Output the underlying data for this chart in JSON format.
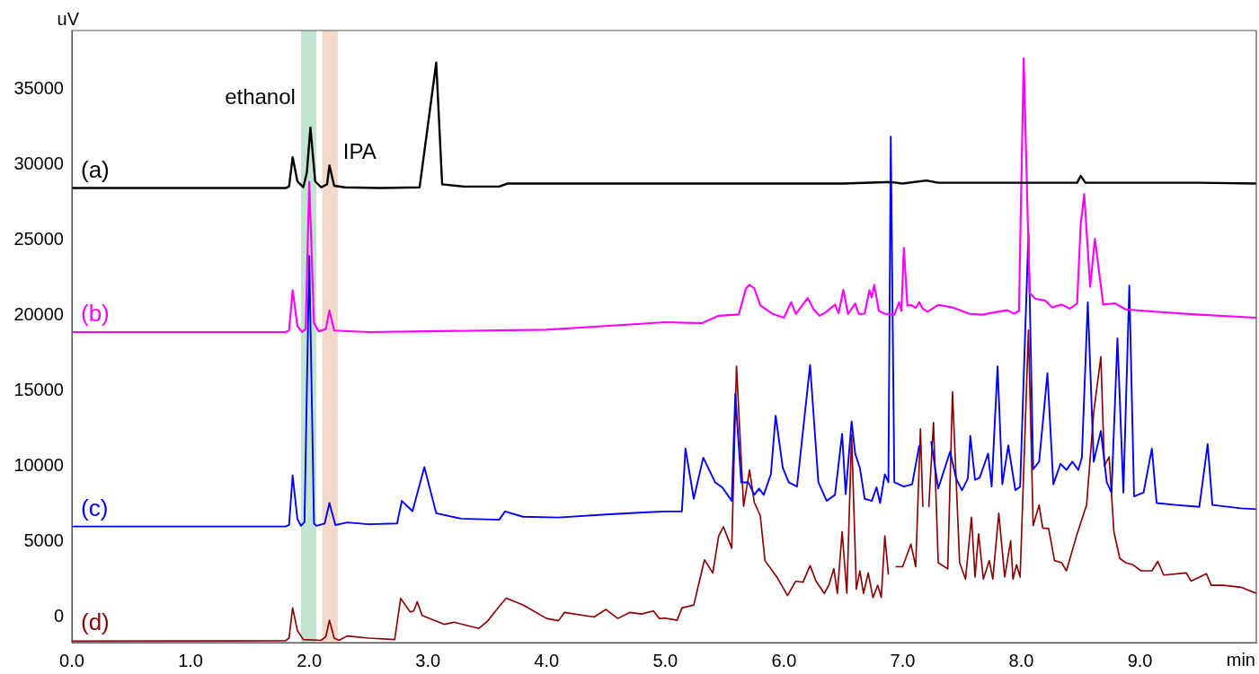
{
  "chart_data": {
    "type": "line",
    "xlabel": "min",
    "ylabel": "uV",
    "xlim": [
      0,
      9.98
    ],
    "ylim": [
      -1700,
      38900
    ],
    "xticks": [
      {
        "value": 0,
        "label": "0.0"
      },
      {
        "value": 1,
        "label": "1.0"
      },
      {
        "value": 2,
        "label": "2.0"
      },
      {
        "value": 3,
        "label": "3.0"
      },
      {
        "value": 4,
        "label": "4.0"
      },
      {
        "value": 5,
        "label": "5.0"
      },
      {
        "value": 6,
        "label": "6.0"
      },
      {
        "value": 7,
        "label": "7.0"
      },
      {
        "value": 8,
        "label": "8.0"
      },
      {
        "value": 9,
        "label": "9.0"
      }
    ],
    "yticks": [
      0,
      5000,
      10000,
      15000,
      20000,
      25000,
      30000,
      35000
    ],
    "grid": false,
    "legend": false,
    "bands": [
      {
        "axis": "x",
        "from": 1.93,
        "to": 2.06,
        "label": "ethanol",
        "color": "#c2e5d2"
      },
      {
        "axis": "x",
        "from": 2.11,
        "to": 2.24,
        "label": "IPA",
        "color": "#f2d9c9"
      }
    ],
    "series": [
      {
        "name": "(a)",
        "color": "#000000",
        "x": [
          0,
          1.5,
          1.8,
          1.83,
          1.86,
          1.9,
          1.95,
          1.98,
          2.01,
          2.05,
          2.1,
          2.15,
          2.17,
          2.21,
          2.3,
          2.6,
          2.93,
          3.07,
          3.12,
          3.3,
          3.6,
          3.67,
          4.5,
          5.5,
          6.5,
          6.9,
          7.0,
          7.2,
          7.3,
          8.0,
          8.47,
          8.5,
          8.54,
          9.5,
          9.98
        ],
        "values": [
          28450,
          28450,
          28450,
          28550,
          30500,
          28900,
          28500,
          29500,
          32460,
          28900,
          28500,
          28700,
          29950,
          28600,
          28500,
          28450,
          28500,
          36770,
          28700,
          28550,
          28550,
          28750,
          28750,
          28750,
          28750,
          28850,
          28750,
          28950,
          28800,
          28800,
          28800,
          29260,
          28800,
          28800,
          28750
        ]
      },
      {
        "name": "(b)",
        "color": "#ff00ff",
        "x": [
          0,
          1.8,
          1.83,
          1.86,
          1.9,
          1.94,
          1.97,
          2.0,
          2.04,
          2.08,
          2.14,
          2.17,
          2.21,
          2.5,
          3.0,
          4.0,
          4.5,
          5.0,
          5.31,
          5.45,
          5.62,
          5.68,
          5.71,
          5.75,
          5.8,
          5.9,
          6.0,
          6.06,
          6.1,
          6.2,
          6.25,
          6.3,
          6.35,
          6.43,
          6.46,
          6.5,
          6.54,
          6.6,
          6.63,
          6.68,
          6.72,
          6.74,
          6.76,
          6.8,
          6.85,
          6.93,
          6.97,
          6.99,
          7.01,
          7.04,
          7.07,
          7.11,
          7.14,
          7.17,
          7.21,
          7.3,
          7.42,
          7.56,
          7.67,
          7.77,
          7.88,
          7.94,
          7.98,
          8.02,
          8.07,
          8.12,
          8.2,
          8.26,
          8.34,
          8.41,
          8.47,
          8.5,
          8.53,
          8.58,
          8.62,
          8.69,
          8.79,
          8.88,
          9.15,
          9.5,
          9.98
        ],
        "values": [
          18900,
          18900,
          19000,
          21680,
          19300,
          18900,
          19100,
          28860,
          19500,
          18950,
          19100,
          20340,
          19000,
          18900,
          18950,
          19050,
          19300,
          19550,
          19490,
          19980,
          20070,
          21800,
          22030,
          21800,
          20670,
          20120,
          19850,
          20880,
          20100,
          21160,
          20400,
          19980,
          20200,
          20720,
          20150,
          21700,
          20100,
          20800,
          20100,
          20120,
          21680,
          21200,
          22030,
          20300,
          20120,
          20050,
          20880,
          20300,
          24490,
          20650,
          20700,
          20500,
          20880,
          20450,
          20250,
          20700,
          20530,
          20120,
          20050,
          20200,
          20350,
          20120,
          20300,
          37050,
          21490,
          21100,
          20990,
          20530,
          20720,
          20450,
          20800,
          26000,
          28040,
          21890,
          25090,
          20720,
          20800,
          20400,
          20240,
          20050,
          19850
        ]
      },
      {
        "name": "(c)",
        "color": "#0000ff",
        "x": [
          0,
          1.8,
          1.83,
          1.86,
          1.9,
          1.93,
          1.96,
          2.0,
          2.04,
          2.06,
          2.13,
          2.17,
          2.22,
          2.32,
          2.5,
          2.74,
          2.78,
          2.87,
          2.97,
          3.07,
          3.28,
          3.6,
          3.65,
          3.8,
          4.1,
          4.5,
          4.85,
          5.0,
          5.14,
          5.17,
          5.24,
          5.32,
          5.42,
          5.48,
          5.56,
          5.59,
          5.64,
          5.7,
          5.75,
          5.79,
          5.83,
          5.89,
          5.93,
          5.99,
          6.04,
          6.11,
          6.22,
          6.29,
          6.36,
          6.43,
          6.49,
          6.52,
          6.57,
          6.6,
          6.64,
          6.68,
          6.74,
          6.78,
          6.81,
          6.85,
          6.88,
          6.9,
          6.93,
          7.01,
          7.08,
          7.14,
          7.19,
          7.23,
          7.24,
          7.3,
          7.4,
          7.45,
          7.5,
          7.55,
          7.57,
          7.61,
          7.65,
          7.72,
          7.75,
          7.8,
          7.84,
          7.89,
          7.95,
          7.99,
          8.06,
          8.1,
          8.15,
          8.22,
          8.27,
          8.33,
          8.38,
          8.43,
          8.48,
          8.51,
          8.56,
          8.61,
          8.67,
          8.72,
          8.76,
          8.81,
          8.86,
          8.91,
          8.95,
          9.03,
          9.1,
          9.14,
          9.3,
          9.5,
          9.57,
          9.61,
          9.85,
          9.98
        ],
        "values": [
          6000,
          6000,
          6100,
          9390,
          6500,
          6050,
          6300,
          23940,
          6200,
          6050,
          6200,
          7560,
          6100,
          6270,
          6150,
          6200,
          7700,
          7020,
          9940,
          6880,
          6520,
          6450,
          7000,
          6650,
          6600,
          6800,
          6950,
          7000,
          7000,
          11170,
          7840,
          10570,
          8930,
          8600,
          7700,
          14800,
          8930,
          8930,
          8100,
          8520,
          8100,
          9480,
          13350,
          9900,
          8930,
          8650,
          16710,
          8930,
          7700,
          8100,
          12150,
          8150,
          12970,
          10840,
          9880,
          7840,
          7700,
          8600,
          7560,
          9470,
          8930,
          31860,
          8930,
          8650,
          8800,
          11380,
          null,
          null,
          11660,
          8520,
          10970,
          9200,
          8400,
          9200,
          12010,
          9100,
          9250,
          10840,
          8650,
          16630,
          8800,
          11380,
          8400,
          8650,
          25440,
          9800,
          10300,
          16160,
          8800,
          10160,
          9750,
          10300,
          9750,
          10570,
          20880,
          10300,
          12340,
          8930,
          8250,
          18480,
          8250,
          21980,
          8000,
          8250,
          11170,
          7560,
          7430,
          7300,
          11470,
          7430,
          7210,
          7150
        ]
      },
      {
        "name": "(d)",
        "color": "#8b0000",
        "x": [
          0,
          1.8,
          1.83,
          1.86,
          1.9,
          1.95,
          2.1,
          2.14,
          2.17,
          2.21,
          2.25,
          2.32,
          2.5,
          2.72,
          2.77,
          2.85,
          2.88,
          2.91,
          2.95,
          3.14,
          3.22,
          3.43,
          3.5,
          3.6,
          3.66,
          3.8,
          4.0,
          4.1,
          4.15,
          4.4,
          4.5,
          4.6,
          4.7,
          4.8,
          4.9,
          4.95,
          5.0,
          5.1,
          5.14,
          5.24,
          5.33,
          5.4,
          5.45,
          5.49,
          5.56,
          5.6,
          5.66,
          5.71,
          5.75,
          5.8,
          5.84,
          5.94,
          6.03,
          6.1,
          6.16,
          6.22,
          6.27,
          6.34,
          6.38,
          6.42,
          6.45,
          6.49,
          6.53,
          6.57,
          6.61,
          6.64,
          6.67,
          6.71,
          6.75,
          6.79,
          6.82,
          6.85,
          6.88,
          6.91,
          6.94,
          7.0,
          7.07,
          7.11,
          7.15,
          7.17,
          7.19,
          7.22,
          7.26,
          7.3,
          7.38,
          7.42,
          7.48,
          7.53,
          7.58,
          7.61,
          7.64,
          7.68,
          7.73,
          7.76,
          7.81,
          7.86,
          7.91,
          7.93,
          7.96,
          7.99,
          8.06,
          8.1,
          8.15,
          8.18,
          8.23,
          8.28,
          8.34,
          8.38,
          8.47,
          8.51,
          8.55,
          8.61,
          8.67,
          8.7,
          8.74,
          8.78,
          8.83,
          8.88,
          8.94,
          9.01,
          9.1,
          9.15,
          9.2,
          9.39,
          9.43,
          9.56,
          9.6,
          9.7,
          9.85,
          9.98
        ],
        "values": [
          -1600,
          -1580,
          -1400,
          600,
          -900,
          -1500,
          -1550,
          -1300,
          -220,
          -1400,
          -1550,
          -1260,
          -1400,
          -1500,
          1230,
          330,
          400,
          1010,
          100,
          -490,
          -350,
          -760,
          -300,
          700,
          1250,
          800,
          -100,
          -250,
          300,
          0,
          500,
          -100,
          300,
          200,
          400,
          -100,
          -80,
          -220,
          600,
          790,
          3790,
          2920,
          5380,
          5980,
          4560,
          16630,
          7340,
          9750,
          7600,
          6740,
          3740,
          2650,
          1420,
          2380,
          2300,
          3410,
          2380,
          1560,
          2150,
          3200,
          1560,
          5650,
          1560,
          12070,
          1850,
          3060,
          1560,
          2920,
          1280,
          2100,
          1300,
          5380,
          2800,
          null,
          3330,
          3330,
          4830,
          3330,
          12480,
          7300,
          null,
          7290,
          12890,
          3600,
          3190,
          14930,
          3600,
          2510,
          6610,
          2650,
          5510,
          2510,
          3740,
          2510,
          6880,
          2650,
          5050,
          2510,
          3460,
          2650,
          19030,
          6060,
          7430,
          5900,
          5870,
          3740,
          3600,
          3060,
          5510,
          6470,
          7430,
          13570,
          17250,
          10020,
          10620,
          5650,
          3880,
          3600,
          3460,
          3060,
          3060,
          3690,
          2780,
          2920,
          2380,
          2870,
          2100,
          2100,
          1970,
          1560
        ]
      }
    ]
  }
}
